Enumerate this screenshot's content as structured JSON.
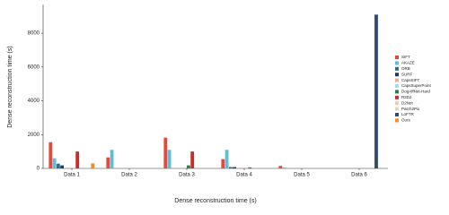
{
  "chart_data": {
    "type": "bar",
    "x_label": "Dense reconstruction time (s)",
    "y_label": "Dense reconstruction time (s)",
    "categories": [
      "Data 1",
      "Data 2",
      "Data 3",
      "Data 4",
      "Data 5",
      "Data 6"
    ],
    "series": [
      {
        "name": "SIFT",
        "color": "#e8473a",
        "values": [
          1550,
          650,
          1820,
          550,
          150,
          null
        ]
      },
      {
        "name": "AKAZE",
        "color": "#5bbfdc",
        "values": [
          600,
          1100,
          1100,
          1100,
          60,
          null
        ]
      },
      {
        "name": "ORB",
        "color": "#2b6f86",
        "values": [
          280,
          null,
          null,
          80,
          null,
          null
        ]
      },
      {
        "name": "SURF",
        "color": "#1f3d5c",
        "values": [
          180,
          null,
          null,
          80,
          null,
          null
        ]
      },
      {
        "name": "CapsSIFT",
        "color": "#f4a79a",
        "values": [
          null,
          null,
          null,
          null,
          null,
          null
        ]
      },
      {
        "name": "CapsSuperPoint",
        "color": "#a8dcec",
        "values": [
          null,
          null,
          null,
          null,
          null,
          null
        ]
      },
      {
        "name": "DogAffNet-Hard",
        "color": "#2e7d4f",
        "values": [
          null,
          null,
          180,
          null,
          null,
          null
        ]
      },
      {
        "name": "R2D2",
        "color": "#c62d2d",
        "values": [
          1000,
          null,
          1000,
          60,
          null,
          null
        ]
      },
      {
        "name": "D2Net",
        "color": "#f6c5c0",
        "values": [
          null,
          null,
          null,
          null,
          null,
          null
        ]
      },
      {
        "name": "Patch2Pix",
        "color": "#e9d3b8",
        "values": [
          null,
          null,
          null,
          null,
          null,
          null
        ]
      },
      {
        "name": "LoFTR",
        "color": "#34496e",
        "values": [
          null,
          null,
          null,
          null,
          null,
          9100
        ]
      },
      {
        "name": "Ours",
        "color": "#f28c28",
        "values": [
          300,
          null,
          null,
          null,
          null,
          null
        ]
      }
    ],
    "ylim": [
      0,
      9700
    ],
    "yticks": [
      0,
      2000,
      4000,
      6000,
      8000
    ],
    "grid": false,
    "legend": "right"
  }
}
